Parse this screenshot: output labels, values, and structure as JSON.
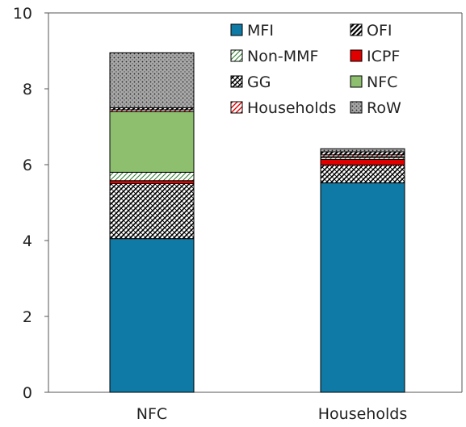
{
  "chart_data": {
    "type": "bar",
    "stacked": true,
    "title": "",
    "xlabel": "",
    "ylabel": "",
    "categories": [
      "NFC",
      "Households"
    ],
    "ylim": [
      0,
      10
    ],
    "yticks": [
      "0",
      "2",
      "4",
      "6",
      "8",
      "10"
    ],
    "grid": false,
    "legend_position": "top-right",
    "series": [
      {
        "name": "MFI",
        "values": [
          4.05,
          5.52
        ],
        "color": "#0f7aa5",
        "pattern": "solid"
      },
      {
        "name": "GG",
        "values": [
          1.45,
          0.47
        ],
        "color": "#000000",
        "pattern": "diag-dense"
      },
      {
        "name": "ICPF",
        "values": [
          0.08,
          0.15
        ],
        "color": "#e00000",
        "pattern": "solid"
      },
      {
        "name": "Non-MMF",
        "values": [
          0.22,
          0.05
        ],
        "color": "#2a7a2a",
        "pattern": "diag-light"
      },
      {
        "name": "NFC",
        "values": [
          1.6,
          0.02
        ],
        "color": "#8ebf6f",
        "pattern": "solid"
      },
      {
        "name": "Households",
        "values": [
          0.05,
          0.05
        ],
        "color": "#e00000",
        "pattern": "diag-red"
      },
      {
        "name": "OFI",
        "values": [
          0.05,
          0.08
        ],
        "color": "#000000",
        "pattern": "diag-heavy"
      },
      {
        "name": "RoW",
        "values": [
          1.45,
          0.08
        ],
        "color": "#a8a8a8",
        "pattern": "dots"
      }
    ],
    "legend_order": [
      "MFI",
      "OFI",
      "Non-MMF",
      "ICPF",
      "GG",
      "NFC",
      "Households",
      "RoW"
    ]
  }
}
